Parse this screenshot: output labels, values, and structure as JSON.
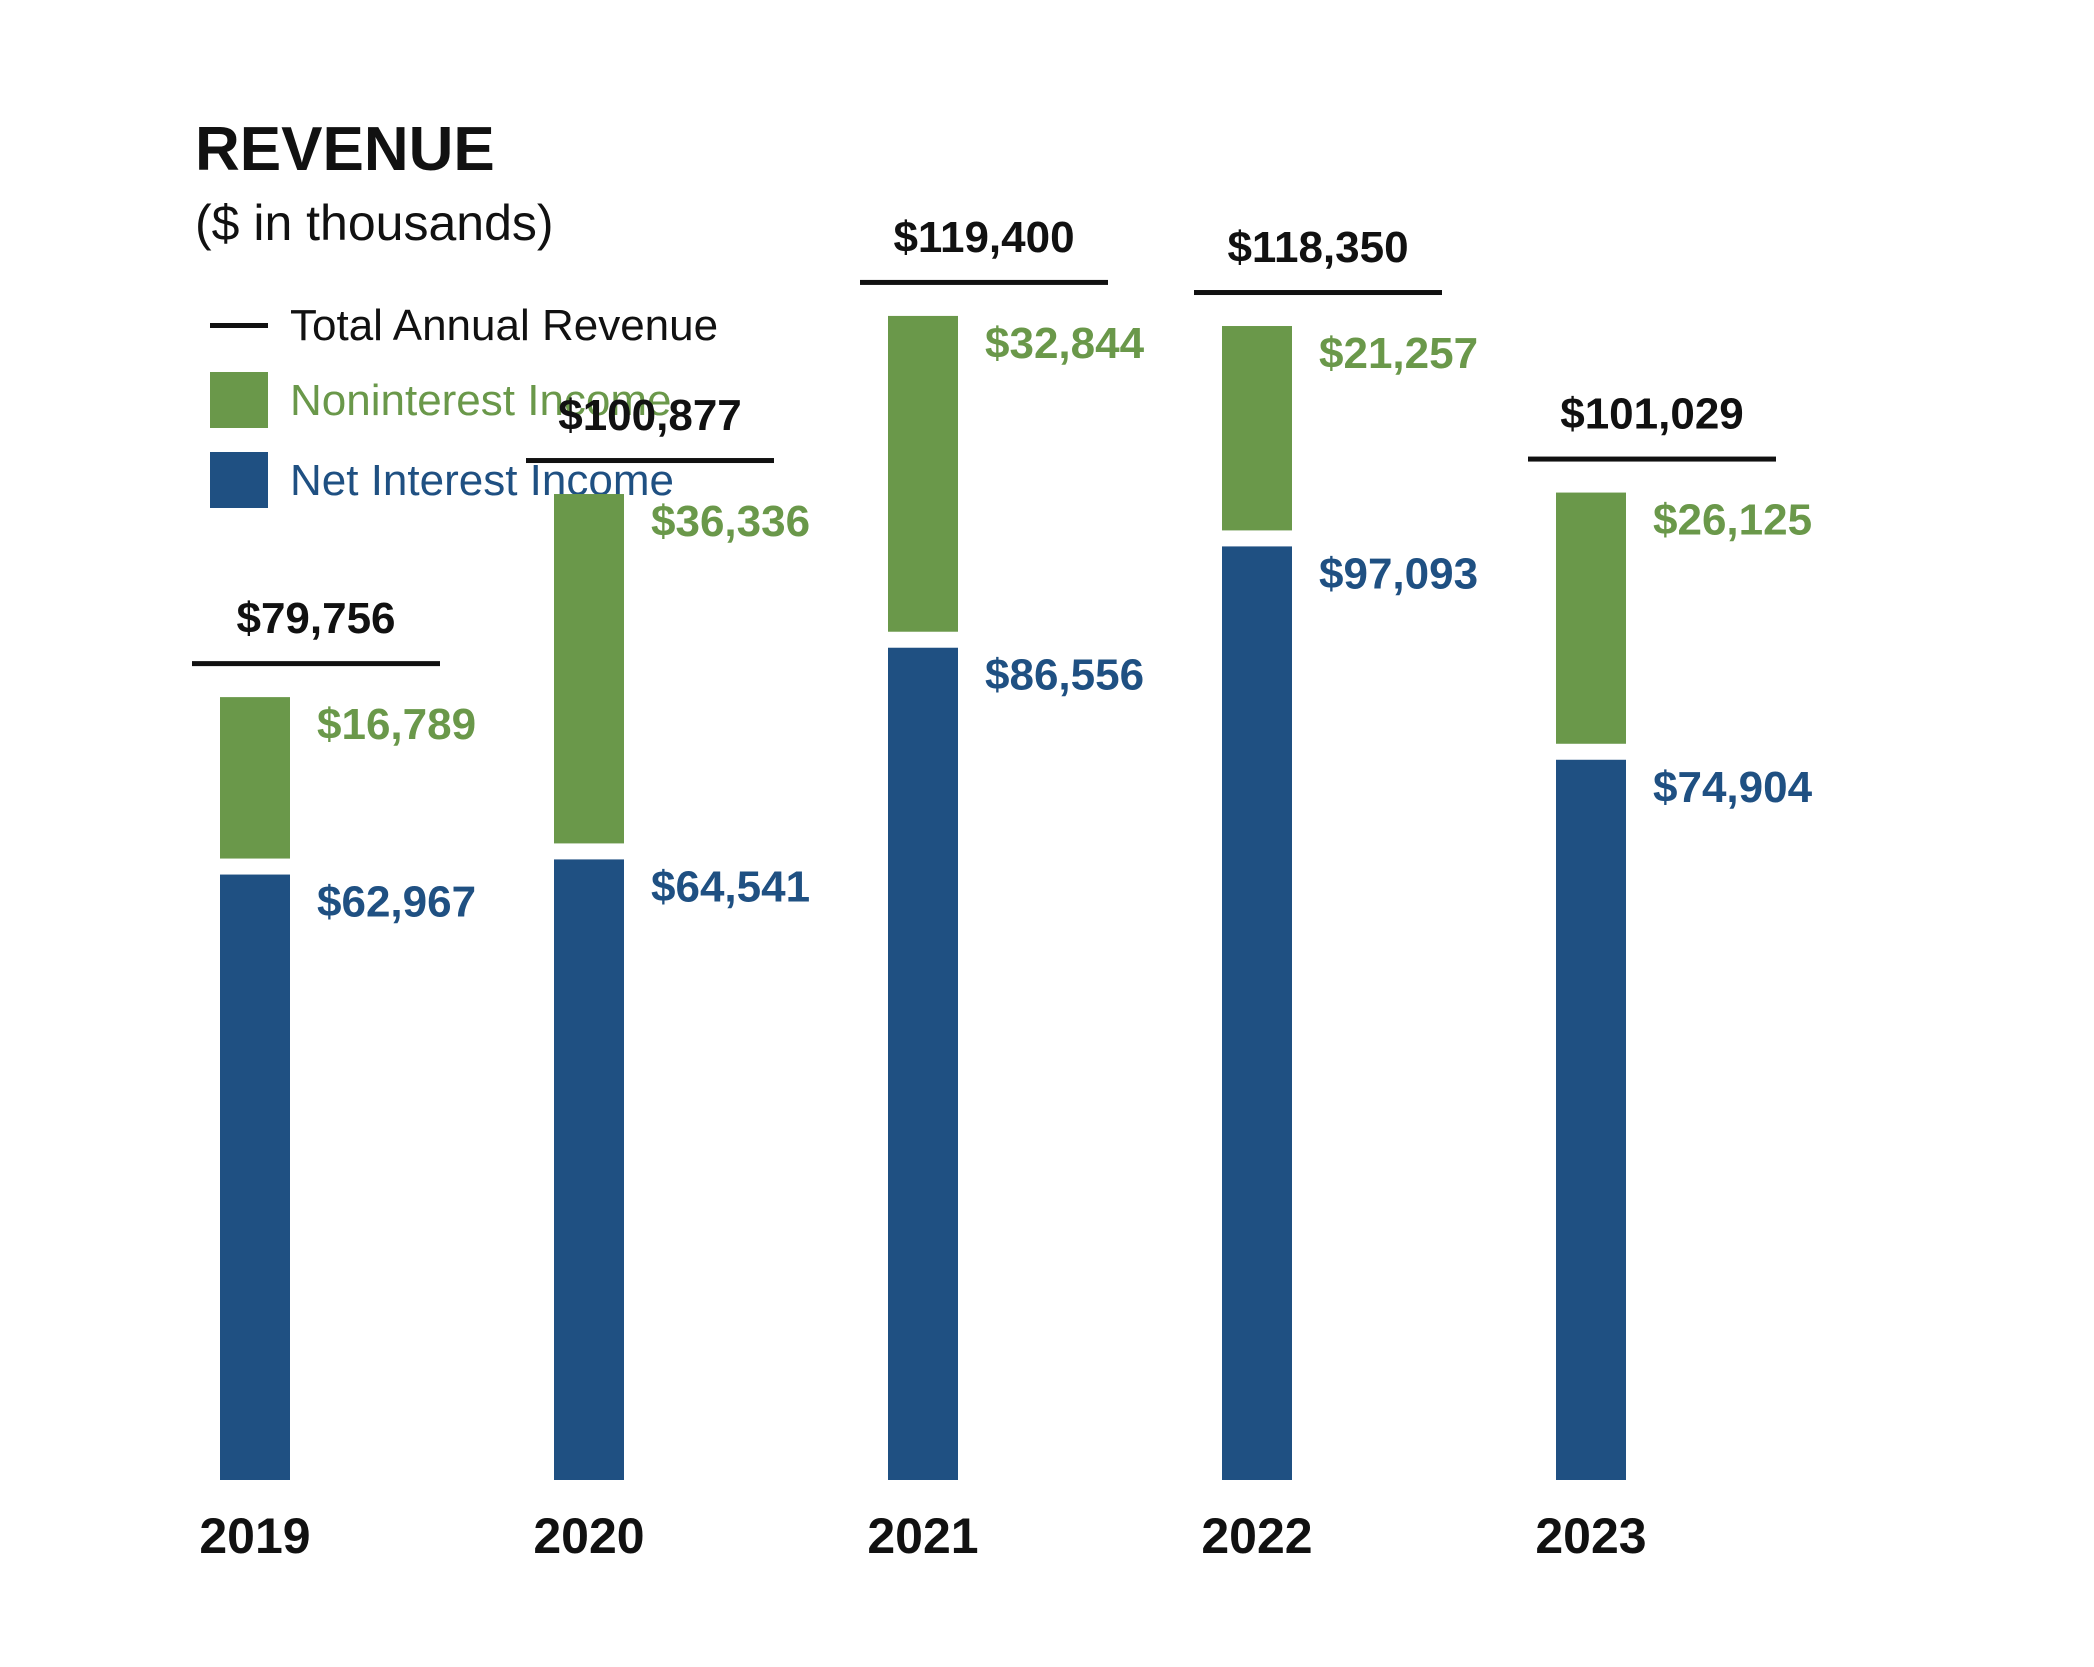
{
  "chart_data": {
    "type": "bar",
    "stacked": true,
    "title": "REVENUE",
    "subtitle": "($ in thousands)",
    "categories": [
      "2019",
      "2020",
      "2021",
      "2022",
      "2023"
    ],
    "series": [
      {
        "name": "Net Interest Income",
        "color": "#1f5082",
        "values": [
          62967,
          64541,
          86556,
          97093,
          74904
        ],
        "labels": [
          "$62,967",
          "$64,541",
          "$86,556",
          "$97,093",
          "$74,904"
        ]
      },
      {
        "name": "Noninterest Income",
        "color": "#6a984a",
        "values": [
          16789,
          36336,
          32844,
          21257,
          26125
        ],
        "labels": [
          "$16,789",
          "$36,336",
          "$32,844",
          "$21,257",
          "$26,125"
        ]
      }
    ],
    "totals": {
      "name": "Total Annual Revenue",
      "color": "#111111",
      "values": [
        79756,
        100877,
        119400,
        118350,
        101029
      ],
      "labels": [
        "$79,756",
        "$100,877",
        "$119,400",
        "$118,350",
        "$101,029"
      ]
    },
    "legend": [
      {
        "label": "Total Annual Revenue",
        "marker": "line",
        "color": "#111111"
      },
      {
        "label": "Noninterest Income",
        "marker": "square",
        "color": "#6a984a"
      },
      {
        "label": "Net Interest Income",
        "marker": "square",
        "color": "#1f5082"
      }
    ],
    "legend_position": "top-left",
    "xlabel": "",
    "ylabel": "",
    "ylim": [
      0,
      130000
    ],
    "grid": false
  }
}
